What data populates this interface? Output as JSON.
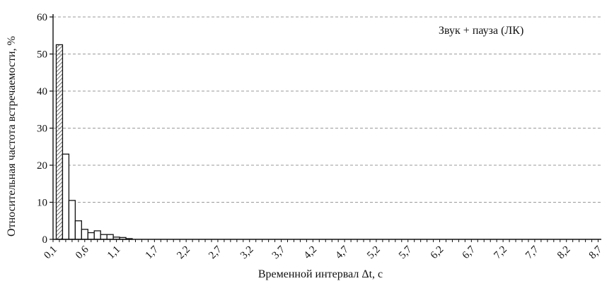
{
  "chart_data": {
    "type": "bar",
    "annotation": "Звук + пауза (ЛК)",
    "xlabel": "Временной интервал Δt, с",
    "ylabel": "Относительная частота встречаемости, %",
    "ylim": [
      0,
      60
    ],
    "y_ticks": [
      "0",
      "10",
      "20",
      "30",
      "40",
      "50",
      "60"
    ],
    "x_ticks": [
      "0,1",
      "0,6",
      "1,1",
      "1,7",
      "2,2",
      "2,7",
      "3,2",
      "3,7",
      "4,2",
      "4,7",
      "5,2",
      "5,7",
      "6,2",
      "6,7",
      "7,2",
      "7,7",
      "8,2",
      "8,7"
    ],
    "grid": "horizontal dashed",
    "bin_width": 0.1,
    "x": [
      0.2,
      0.3,
      0.4,
      0.5,
      0.6,
      0.7,
      0.8,
      0.9,
      1.0,
      1.1,
      1.2,
      1.3
    ],
    "values": [
      52.5,
      23,
      10.5,
      5,
      2.7,
      1.8,
      2.3,
      1.3,
      1.3,
      0.6,
      0.5,
      0.2
    ],
    "bar_pattern": {
      "first": "hatched",
      "rest": "hollow"
    }
  }
}
